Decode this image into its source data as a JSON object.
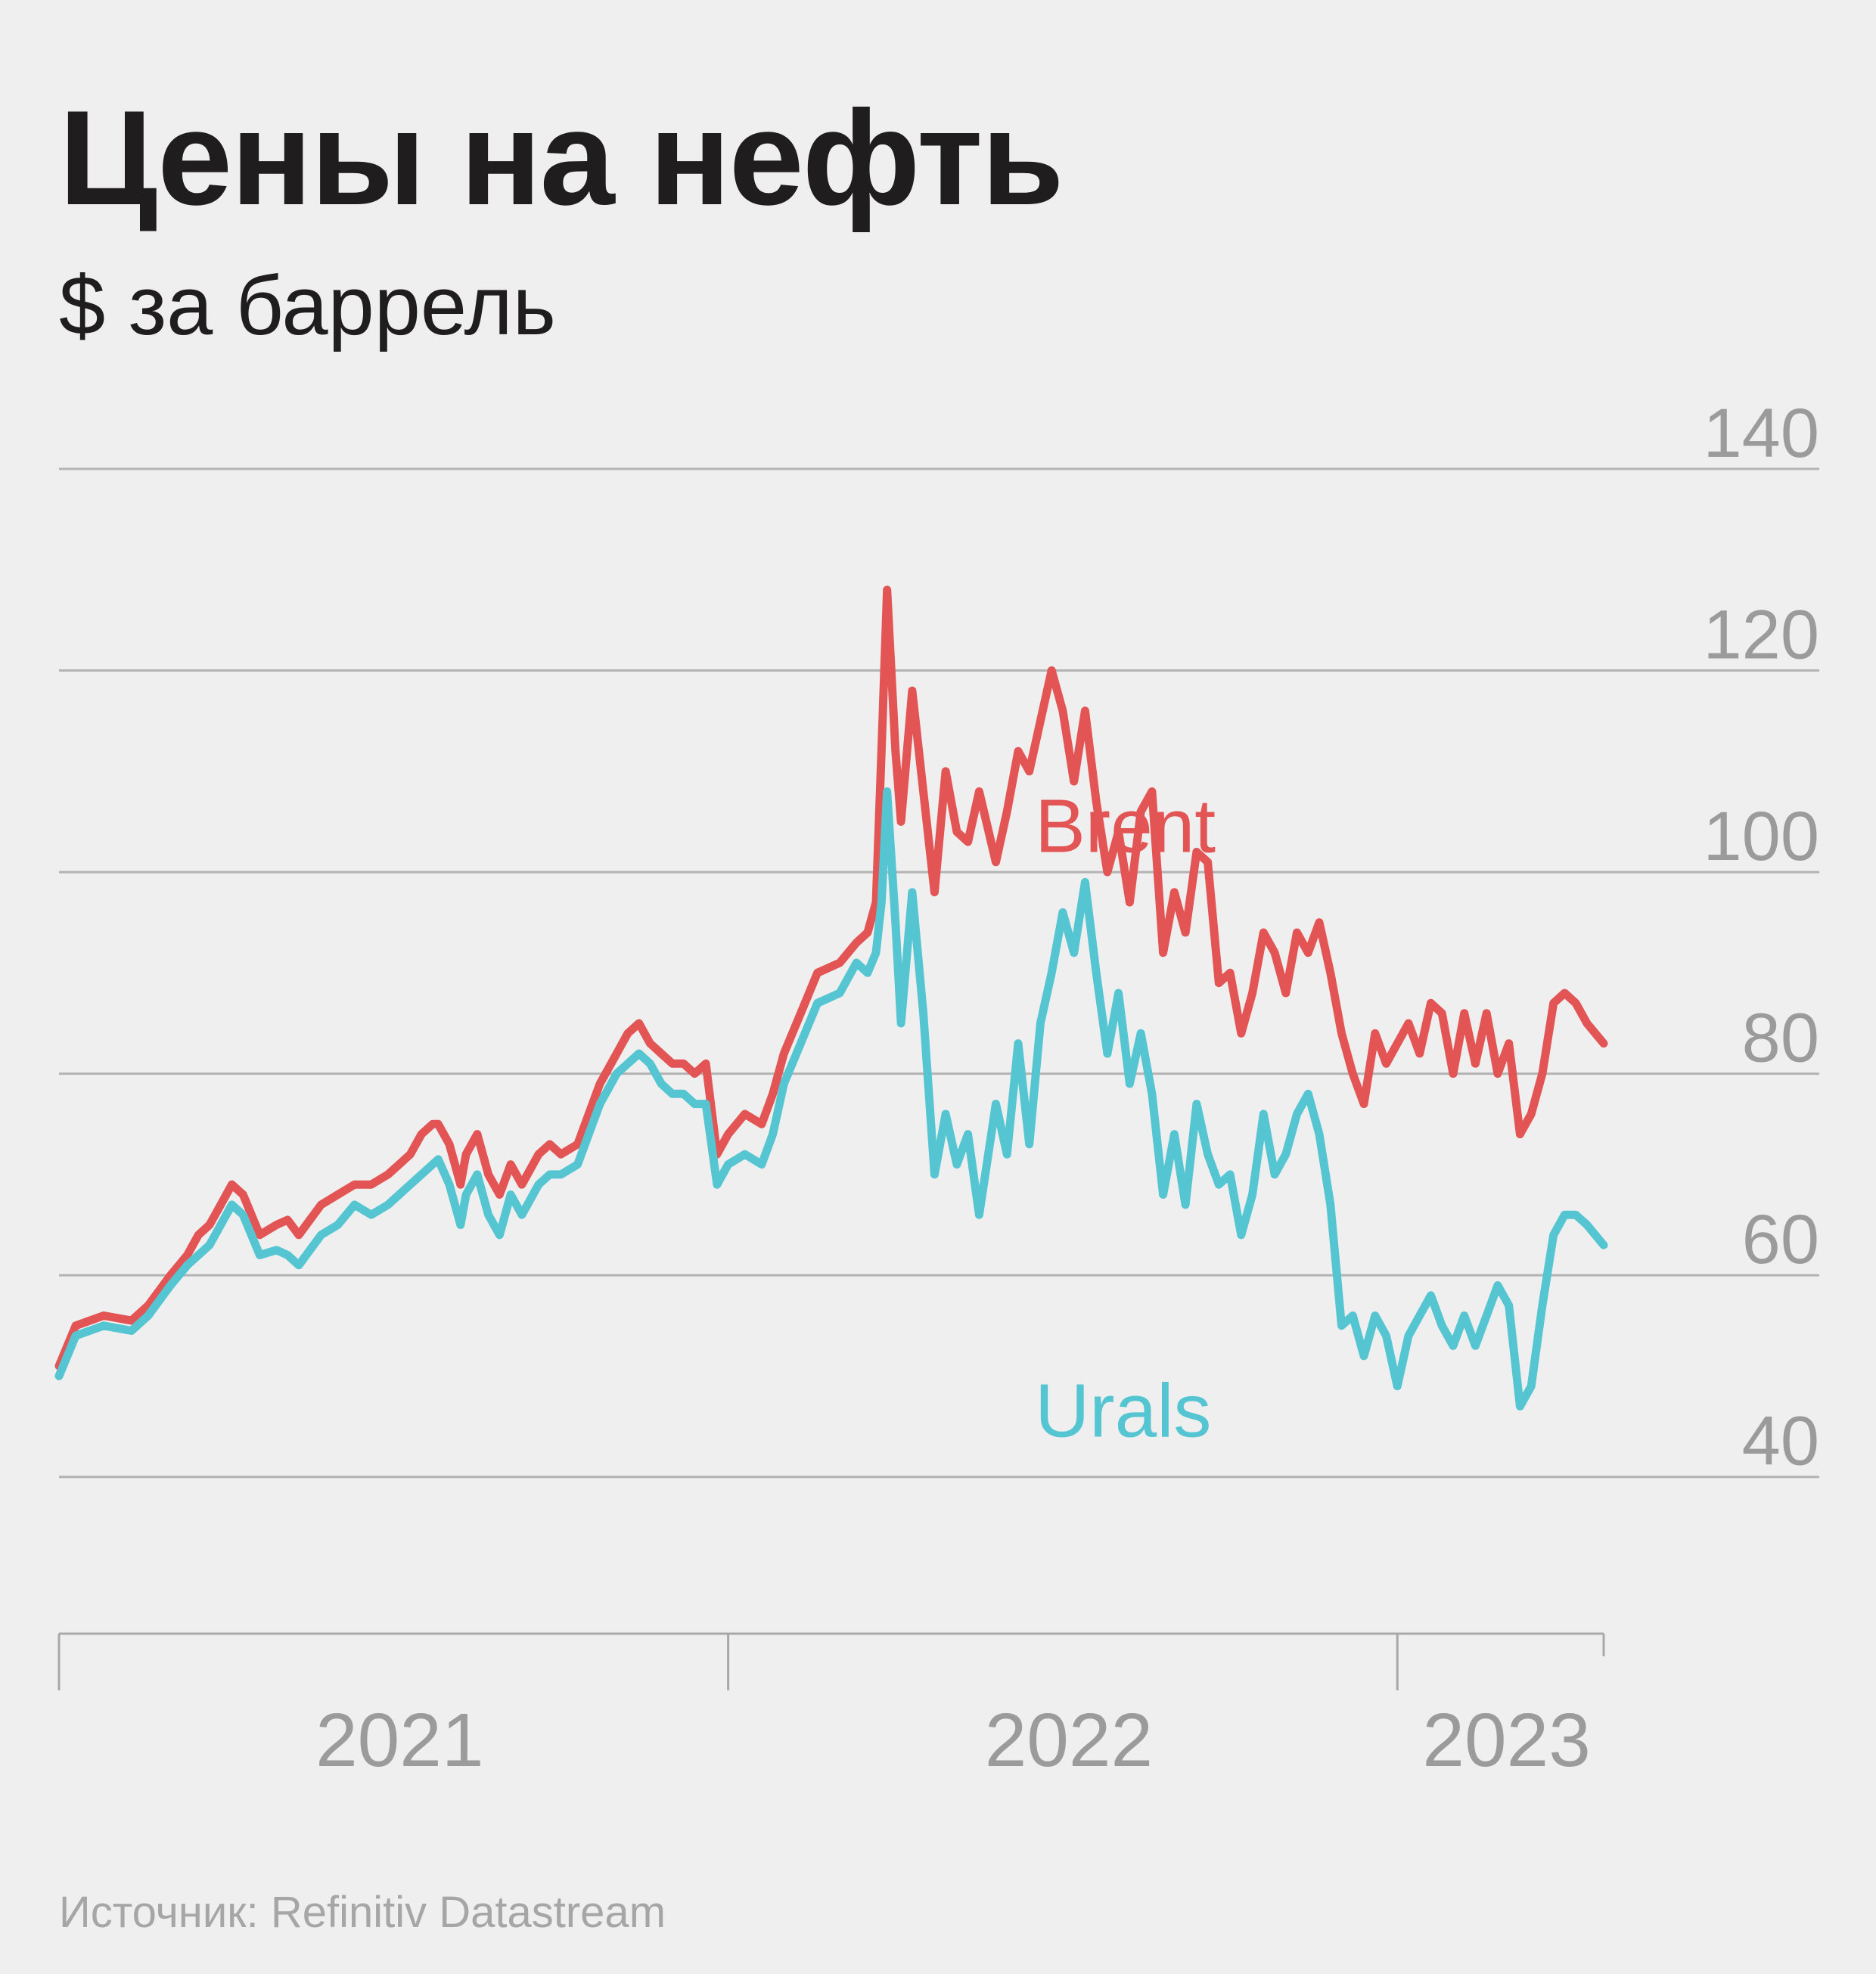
{
  "title": "Цены на нефть",
  "subtitle": "$ за баррель",
  "source": "Источник: Refinitiv Datastream",
  "chart_data": {
    "type": "line",
    "title": "Цены на нефть",
    "ylabel": "$ за баррель",
    "ylim": [
      36,
      140
    ],
    "yticks": [
      40,
      60,
      80,
      100,
      120,
      140
    ],
    "ytick_labels": [
      "40",
      "60",
      "80",
      "100",
      "120",
      "140"
    ],
    "x_unit": "months since Jan 2021",
    "xlim": [
      0,
      27.7
    ],
    "x_boundaries": [
      0,
      12,
      24,
      27.7
    ],
    "period_labels": [
      {
        "label": "2021",
        "start": 0,
        "end": 12
      },
      {
        "label": "2022",
        "start": 12,
        "end": 24
      },
      {
        "label": "2023",
        "start": 24,
        "end": 27.7
      }
    ],
    "grid": true,
    "series": [
      {
        "name": "Brent",
        "color": "#e35454",
        "x": [
          0,
          0.3,
          0.8,
          1.3,
          1.6,
          2.0,
          2.3,
          2.5,
          2.7,
          2.9,
          3.1,
          3.3,
          3.6,
          3.9,
          4.1,
          4.3,
          4.7,
          5.0,
          5.3,
          5.6,
          5.9,
          6.1,
          6.3,
          6.5,
          6.7,
          6.8,
          7.0,
          7.2,
          7.3,
          7.5,
          7.7,
          7.9,
          8.1,
          8.3,
          8.6,
          8.8,
          9.0,
          9.3,
          9.5,
          9.7,
          10.0,
          10.2,
          10.4,
          10.6,
          10.8,
          11.0,
          11.2,
          11.4,
          11.6,
          11.8,
          12.0,
          12.3,
          12.6,
          12.8,
          13.0,
          13.3,
          13.6,
          14.0,
          14.3,
          14.5,
          14.65,
          14.75,
          14.85,
          15.0,
          15.1,
          15.3,
          15.5,
          15.7,
          15.9,
          16.1,
          16.3,
          16.5,
          16.8,
          17.0,
          17.2,
          17.4,
          17.6,
          17.8,
          18.0,
          18.2,
          18.4,
          18.6,
          18.8,
          19.0,
          19.2,
          19.4,
          19.6,
          19.8,
          20.0,
          20.2,
          20.4,
          20.6,
          20.8,
          21.0,
          21.2,
          21.4,
          21.6,
          21.8,
          22.0,
          22.2,
          22.4,
          22.6,
          22.8,
          23.0,
          23.2,
          23.4,
          23.6,
          23.8,
          24.0,
          24.2,
          24.4,
          24.6,
          24.8,
          25.0,
          25.2,
          25.4,
          25.6,
          25.8,
          26.0,
          26.2,
          26.4,
          26.6,
          26.8,
          27.0,
          27.2,
          27.4,
          27.7
        ],
        "values": [
          51,
          55,
          56,
          55.5,
          57,
          60,
          62,
          64,
          65,
          67,
          69,
          68,
          64,
          65,
          65.5,
          64,
          67,
          68,
          69,
          69,
          70,
          71,
          72,
          74,
          75,
          75,
          73,
          69,
          72,
          74,
          70,
          68,
          71,
          69,
          72,
          73,
          72,
          73,
          76,
          79,
          82,
          84,
          85,
          83,
          82,
          81,
          81,
          80,
          81,
          72,
          74,
          76,
          75,
          78,
          82,
          86,
          90,
          91,
          93,
          94,
          97,
          112,
          128,
          112,
          105,
          118,
          108,
          98,
          110,
          104,
          103,
          108,
          101,
          106,
          112,
          110,
          115,
          120,
          116,
          109,
          116,
          107,
          100,
          104,
          97,
          106,
          108,
          92,
          98,
          94,
          102,
          101,
          89,
          90,
          84,
          88,
          94,
          92,
          88,
          94,
          92,
          95,
          90,
          84,
          80,
          77,
          84,
          81,
          83,
          85,
          82,
          87,
          86,
          80,
          86,
          81,
          86,
          80,
          83,
          74,
          76,
          80,
          87,
          88,
          87,
          85,
          83
        ]
      },
      {
        "name": "Urals",
        "color": "#55c5d2",
        "x": [
          0,
          0.3,
          0.8,
          1.3,
          1.6,
          2.0,
          2.3,
          2.5,
          2.7,
          2.9,
          3.1,
          3.3,
          3.6,
          3.9,
          4.1,
          4.3,
          4.7,
          5.0,
          5.3,
          5.6,
          5.9,
          6.1,
          6.3,
          6.5,
          6.7,
          6.8,
          7.0,
          7.2,
          7.3,
          7.5,
          7.7,
          7.9,
          8.1,
          8.3,
          8.6,
          8.8,
          9.0,
          9.3,
          9.5,
          9.7,
          10.0,
          10.2,
          10.4,
          10.6,
          10.8,
          11.0,
          11.2,
          11.4,
          11.6,
          11.8,
          12.0,
          12.3,
          12.6,
          12.8,
          13.0,
          13.3,
          13.6,
          14.0,
          14.3,
          14.5,
          14.65,
          14.75,
          14.85,
          15.0,
          15.1,
          15.3,
          15.5,
          15.7,
          15.9,
          16.1,
          16.3,
          16.5,
          16.8,
          17.0,
          17.2,
          17.4,
          17.6,
          17.8,
          18.0,
          18.2,
          18.4,
          18.6,
          18.8,
          19.0,
          19.2,
          19.4,
          19.6,
          19.8,
          20.0,
          20.2,
          20.4,
          20.6,
          20.8,
          21.0,
          21.2,
          21.4,
          21.6,
          21.8,
          22.0,
          22.2,
          22.4,
          22.6,
          22.8,
          23.0,
          23.2,
          23.4,
          23.6,
          23.8,
          24.0,
          24.2,
          24.4,
          24.6,
          24.8,
          25.0,
          25.2,
          25.4,
          25.6,
          25.8,
          26.0,
          26.2,
          26.4,
          26.6,
          26.8,
          27.0,
          27.2,
          27.4,
          27.7
        ],
        "values": [
          50,
          54,
          55,
          54.5,
          56,
          59,
          61,
          62,
          63,
          65,
          67,
          66,
          62,
          62.5,
          62,
          61,
          64,
          65,
          67,
          66,
          67,
          68,
          69,
          70,
          71,
          71.5,
          69,
          65,
          68,
          70,
          66,
          64,
          68,
          66,
          69,
          70,
          70,
          71,
          74,
          77,
          80,
          81,
          82,
          81,
          79,
          78,
          78,
          77,
          77,
          69,
          71,
          72,
          71,
          74,
          79,
          83,
          87,
          88,
          91,
          90,
          92,
          97,
          108,
          95,
          85,
          98,
          86,
          70,
          76,
          71,
          74,
          66,
          77,
          72,
          83,
          73,
          85,
          90,
          96,
          92,
          99,
          90,
          82,
          88,
          79,
          84,
          78,
          68,
          74,
          67,
          77,
          72,
          69,
          70,
          64,
          68,
          76,
          70,
          72,
          76,
          78,
          74,
          67,
          55,
          56,
          52,
          56,
          54,
          49,
          54,
          56,
          58,
          55,
          53,
          56,
          53,
          56,
          59,
          57,
          47,
          49,
          57,
          64,
          66,
          66,
          65,
          63
        ]
      }
    ],
    "annotations": [
      {
        "text": "Brent",
        "series": "Brent",
        "x": 17.5,
        "y": 102
      },
      {
        "text": "Urals",
        "series": "Urals",
        "x": 17.5,
        "y": 44
      }
    ]
  }
}
